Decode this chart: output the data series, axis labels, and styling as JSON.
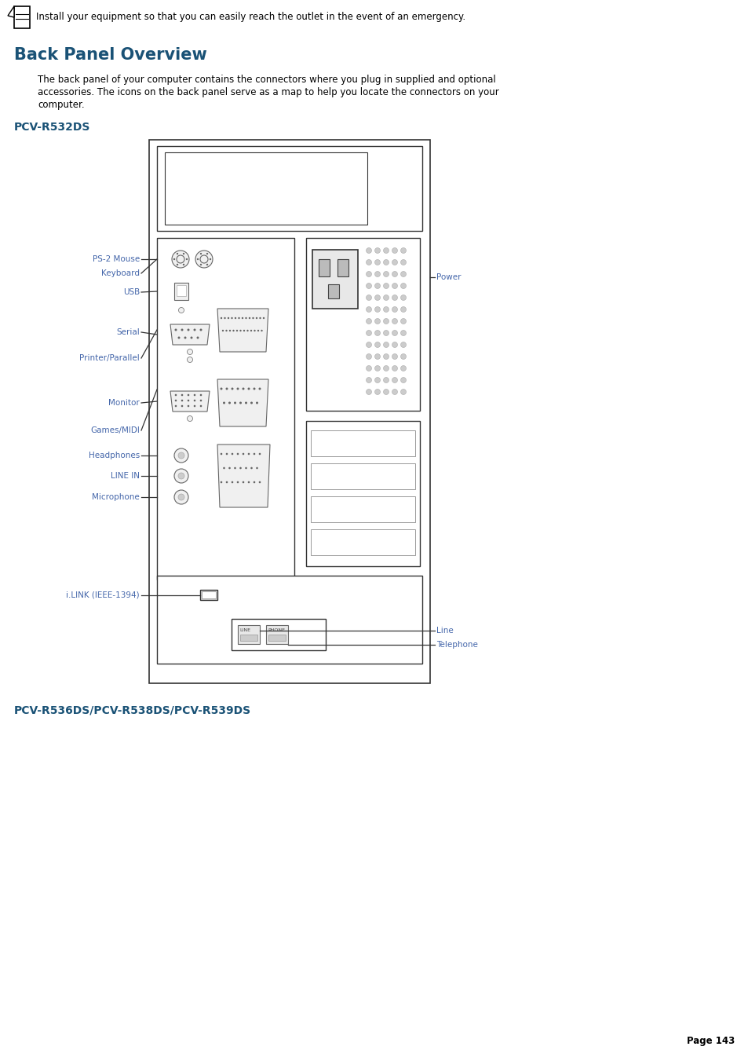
{
  "bg_color": "#ffffff",
  "page_width": 9.54,
  "page_height": 13.51,
  "icon_text": "Install your equipment so that you can easily reach the outlet in the event of an emergency.",
  "heading": "Back Panel Overview",
  "heading_color": "#1a5276",
  "body_text_line1": "The back panel of your computer contains the connectors where you plug in supplied and optional",
  "body_text_line2": "accessories. The icons on the back panel serve as a map to help you locate the connectors on your",
  "body_text_line3": "computer.",
  "model1_label": "PCV-R532DS",
  "model1_color": "#1a5276",
  "model2_label": "PCV-R536DS/PCV-R538DS/PCV-R539DS",
  "model2_color": "#1a5276",
  "page_label": "Page 143",
  "label_color": "#4466aa",
  "line_color": "#333333",
  "connector_color": "#666666",
  "diagram_edge_color": "#888888"
}
